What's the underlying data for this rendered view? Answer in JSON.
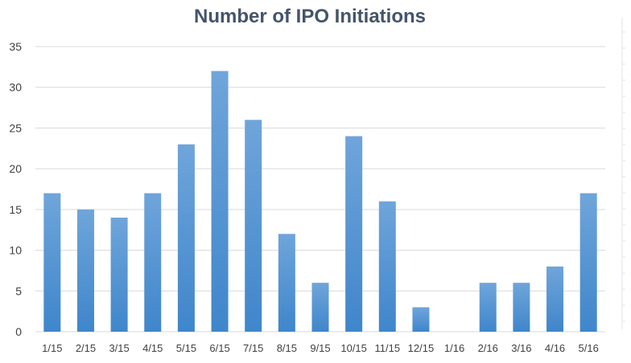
{
  "chart_data": {
    "type": "bar",
    "title": "Number of IPO Initiations",
    "xlabel": "",
    "ylabel": "",
    "categories": [
      "1/15",
      "2/15",
      "3/15",
      "4/15",
      "5/15",
      "6/15",
      "7/15",
      "8/15",
      "9/15",
      "10/15",
      "11/15",
      "12/15",
      "1/16",
      "2/16",
      "3/16",
      "4/16",
      "5/16"
    ],
    "values": [
      17,
      15,
      14,
      17,
      23,
      32,
      26,
      12,
      6,
      24,
      16,
      3,
      0,
      6,
      6,
      8,
      17
    ],
    "ylim": [
      0,
      35
    ],
    "yticks": [
      0,
      5,
      10,
      15,
      20,
      25,
      30,
      35
    ],
    "grid": true,
    "legend": "none",
    "colors": {
      "bar_top": "#6fa5da",
      "bar_bottom": "#3f86cb"
    }
  }
}
